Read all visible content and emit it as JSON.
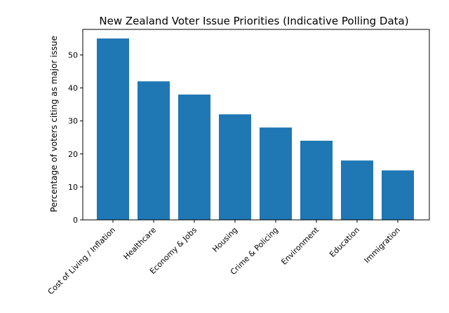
{
  "chart_data": {
    "type": "bar",
    "title": "New Zealand Voter Issue Priorities (Indicative Polling Data)",
    "xlabel": "",
    "ylabel": "Percentage of voters citing as major issue",
    "categories": [
      "Cost of Living / Inflation",
      "Healthcare",
      "Economy & Jobs",
      "Housing",
      "Crime & Policing",
      "Environment",
      "Education",
      "Immigration"
    ],
    "values": [
      55,
      42,
      38,
      32,
      28,
      24,
      18,
      15
    ],
    "ylim": [
      0,
      57.75
    ],
    "yticks": [
      0,
      10,
      20,
      30,
      40,
      50
    ],
    "ytick_labels": [
      "0",
      "10",
      "20",
      "30",
      "40",
      "50"
    ],
    "bar_color": "#1f77b4",
    "grid": false
  }
}
